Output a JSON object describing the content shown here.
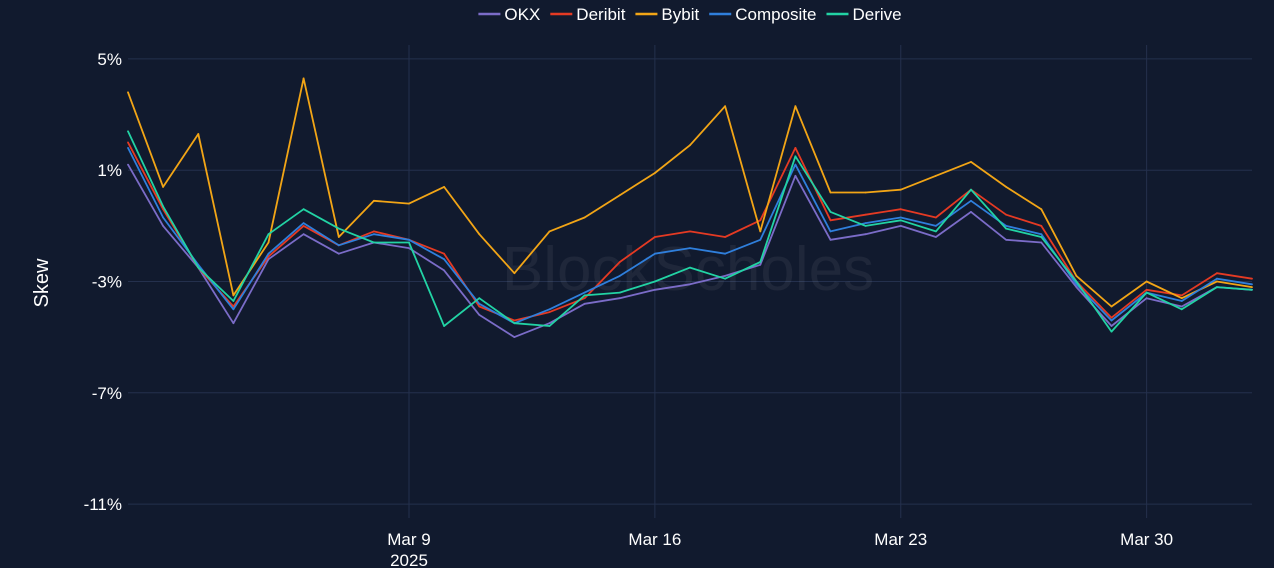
{
  "watermark": "BlockScholes",
  "colors": {
    "background": "#111a2e",
    "grid": "#24304d"
  },
  "chart_data": {
    "type": "line",
    "title": "",
    "xlabel": "",
    "ylabel": "Skew",
    "ylim": [
      -11.5,
      5.5
    ],
    "yticks": [
      5,
      1,
      -3,
      -7,
      -11
    ],
    "ytick_labels": [
      "5%",
      "1%",
      "-3%",
      "-7%",
      "-11%"
    ],
    "xlim": [
      "2025-03-01",
      "2025-04-02"
    ],
    "xticks": [
      "2025-03-09",
      "2025-03-16",
      "2025-03-23",
      "2025-03-30"
    ],
    "xtick_labels": [
      "Mar 9",
      "Mar 16",
      "Mar 23",
      "Mar 30"
    ],
    "xtick_sublabel": "2025",
    "grid": true,
    "legend_position": "top-center",
    "legend_orientation": "horizontal",
    "series": [
      {
        "name": "OKX",
        "color": "#7b6cc8",
        "points": [
          [
            "2025-03-01",
            1.2
          ],
          [
            "2025-03-02",
            -1.0
          ],
          [
            "2025-03-03",
            -2.5
          ],
          [
            "2025-03-04",
            -4.5
          ],
          [
            "2025-03-05",
            -2.2
          ],
          [
            "2025-03-06",
            -1.3
          ],
          [
            "2025-03-07",
            -2.0
          ],
          [
            "2025-03-08",
            -1.6
          ],
          [
            "2025-03-09",
            -1.8
          ],
          [
            "2025-03-10",
            -2.6
          ],
          [
            "2025-03-11",
            -4.2
          ],
          [
            "2025-03-12",
            -5.0
          ],
          [
            "2025-03-13",
            -4.5
          ],
          [
            "2025-03-14",
            -3.8
          ],
          [
            "2025-03-15",
            -3.6
          ],
          [
            "2025-03-16",
            -3.3
          ],
          [
            "2025-03-17",
            -3.1
          ],
          [
            "2025-03-18",
            -2.8
          ],
          [
            "2025-03-19",
            -2.4
          ],
          [
            "2025-03-20",
            0.8
          ],
          [
            "2025-03-21",
            -1.5
          ],
          [
            "2025-03-22",
            -1.3
          ],
          [
            "2025-03-23",
            -1.0
          ],
          [
            "2025-03-24",
            -1.4
          ],
          [
            "2025-03-25",
            -0.5
          ],
          [
            "2025-03-26",
            -1.5
          ],
          [
            "2025-03-27",
            -1.6
          ],
          [
            "2025-03-28",
            -3.2
          ],
          [
            "2025-03-29",
            -4.6
          ],
          [
            "2025-03-30",
            -3.6
          ],
          [
            "2025-03-31",
            -3.9
          ],
          [
            "2025-04-01",
            -3.2
          ],
          [
            "2025-04-02",
            -3.3
          ]
        ]
      },
      {
        "name": "Deribit",
        "color": "#e53a23",
        "points": [
          [
            "2025-03-01",
            2.0
          ],
          [
            "2025-03-02",
            -0.4
          ],
          [
            "2025-03-03",
            -2.5
          ],
          [
            "2025-03-04",
            -3.9
          ],
          [
            "2025-03-05",
            -2.1
          ],
          [
            "2025-03-06",
            -1.0
          ],
          [
            "2025-03-07",
            -1.7
          ],
          [
            "2025-03-08",
            -1.2
          ],
          [
            "2025-03-09",
            -1.5
          ],
          [
            "2025-03-10",
            -2.0
          ],
          [
            "2025-03-11",
            -3.9
          ],
          [
            "2025-03-12",
            -4.4
          ],
          [
            "2025-03-13",
            -4.1
          ],
          [
            "2025-03-14",
            -3.6
          ],
          [
            "2025-03-15",
            -2.3
          ],
          [
            "2025-03-16",
            -1.4
          ],
          [
            "2025-03-17",
            -1.2
          ],
          [
            "2025-03-18",
            -1.4
          ],
          [
            "2025-03-19",
            -0.8
          ],
          [
            "2025-03-20",
            1.8
          ],
          [
            "2025-03-21",
            -0.8
          ],
          [
            "2025-03-22",
            -0.6
          ],
          [
            "2025-03-23",
            -0.4
          ],
          [
            "2025-03-24",
            -0.7
          ],
          [
            "2025-03-25",
            0.3
          ],
          [
            "2025-03-26",
            -0.6
          ],
          [
            "2025-03-27",
            -1.0
          ],
          [
            "2025-03-28",
            -3.0
          ],
          [
            "2025-03-29",
            -4.3
          ],
          [
            "2025-03-30",
            -3.3
          ],
          [
            "2025-03-31",
            -3.5
          ],
          [
            "2025-04-01",
            -2.7
          ],
          [
            "2025-04-02",
            -2.9
          ]
        ]
      },
      {
        "name": "Bybit",
        "color": "#f2a516",
        "points": [
          [
            "2025-03-01",
            3.8
          ],
          [
            "2025-03-02",
            0.4
          ],
          [
            "2025-03-03",
            2.3
          ],
          [
            "2025-03-04",
            -3.5
          ],
          [
            "2025-03-05",
            -1.6
          ],
          [
            "2025-03-06",
            4.3
          ],
          [
            "2025-03-07",
            -1.4
          ],
          [
            "2025-03-08",
            -0.1
          ],
          [
            "2025-03-09",
            -0.2
          ],
          [
            "2025-03-10",
            0.4
          ],
          [
            "2025-03-11",
            -1.3
          ],
          [
            "2025-03-12",
            -2.7
          ],
          [
            "2025-03-13",
            -1.2
          ],
          [
            "2025-03-14",
            -0.7
          ],
          [
            "2025-03-15",
            0.1
          ],
          [
            "2025-03-16",
            0.9
          ],
          [
            "2025-03-17",
            1.9
          ],
          [
            "2025-03-18",
            3.3
          ],
          [
            "2025-03-19",
            -1.2
          ],
          [
            "2025-03-20",
            3.3
          ],
          [
            "2025-03-21",
            0.2
          ],
          [
            "2025-03-22",
            0.2
          ],
          [
            "2025-03-23",
            0.3
          ],
          [
            "2025-03-24",
            0.8
          ],
          [
            "2025-03-25",
            1.3
          ],
          [
            "2025-03-26",
            0.4
          ],
          [
            "2025-03-27",
            -0.4
          ],
          [
            "2025-03-28",
            -2.8
          ],
          [
            "2025-03-29",
            -3.9
          ],
          [
            "2025-03-30",
            -3.0
          ],
          [
            "2025-03-31",
            -3.6
          ],
          [
            "2025-04-01",
            -3.0
          ],
          [
            "2025-04-02",
            -3.2
          ]
        ]
      },
      {
        "name": "Composite",
        "color": "#2f7fdc",
        "points": [
          [
            "2025-03-01",
            1.8
          ],
          [
            "2025-03-02",
            -0.7
          ],
          [
            "2025-03-03",
            -2.4
          ],
          [
            "2025-03-04",
            -4.0
          ],
          [
            "2025-03-05",
            -2.0
          ],
          [
            "2025-03-06",
            -0.9
          ],
          [
            "2025-03-07",
            -1.7
          ],
          [
            "2025-03-08",
            -1.3
          ],
          [
            "2025-03-09",
            -1.5
          ],
          [
            "2025-03-10",
            -2.2
          ],
          [
            "2025-03-11",
            -3.8
          ],
          [
            "2025-03-12",
            -4.5
          ],
          [
            "2025-03-13",
            -4.0
          ],
          [
            "2025-03-14",
            -3.4
          ],
          [
            "2025-03-15",
            -2.8
          ],
          [
            "2025-03-16",
            -2.0
          ],
          [
            "2025-03-17",
            -1.8
          ],
          [
            "2025-03-18",
            -2.0
          ],
          [
            "2025-03-19",
            -1.5
          ],
          [
            "2025-03-20",
            1.2
          ],
          [
            "2025-03-21",
            -1.2
          ],
          [
            "2025-03-22",
            -0.9
          ],
          [
            "2025-03-23",
            -0.7
          ],
          [
            "2025-03-24",
            -1.0
          ],
          [
            "2025-03-25",
            -0.1
          ],
          [
            "2025-03-26",
            -1.0
          ],
          [
            "2025-03-27",
            -1.3
          ],
          [
            "2025-03-28",
            -3.1
          ],
          [
            "2025-03-29",
            -4.4
          ],
          [
            "2025-03-30",
            -3.4
          ],
          [
            "2025-03-31",
            -3.7
          ],
          [
            "2025-04-01",
            -2.9
          ],
          [
            "2025-04-02",
            -3.1
          ]
        ]
      },
      {
        "name": "Derive",
        "color": "#22d3a4",
        "points": [
          [
            "2025-03-01",
            2.4
          ],
          [
            "2025-03-02",
            -0.3
          ],
          [
            "2025-03-03",
            -2.5
          ],
          [
            "2025-03-04",
            -3.7
          ],
          [
            "2025-03-05",
            -1.3
          ],
          [
            "2025-03-06",
            -0.4
          ],
          [
            "2025-03-07",
            -1.1
          ],
          [
            "2025-03-08",
            -1.6
          ],
          [
            "2025-03-09",
            -1.6
          ],
          [
            "2025-03-10",
            -4.6
          ],
          [
            "2025-03-11",
            -3.6
          ],
          [
            "2025-03-12",
            -4.5
          ],
          [
            "2025-03-13",
            -4.6
          ],
          [
            "2025-03-14",
            -3.5
          ],
          [
            "2025-03-15",
            -3.4
          ],
          [
            "2025-03-16",
            -3.0
          ],
          [
            "2025-03-17",
            -2.5
          ],
          [
            "2025-03-18",
            -2.9
          ],
          [
            "2025-03-19",
            -2.3
          ],
          [
            "2025-03-20",
            1.5
          ],
          [
            "2025-03-21",
            -0.5
          ],
          [
            "2025-03-22",
            -1.0
          ],
          [
            "2025-03-23",
            -0.8
          ],
          [
            "2025-03-24",
            -1.2
          ],
          [
            "2025-03-25",
            0.3
          ],
          [
            "2025-03-26",
            -1.1
          ],
          [
            "2025-03-27",
            -1.4
          ],
          [
            "2025-03-28",
            -3.0
          ],
          [
            "2025-03-29",
            -4.8
          ],
          [
            "2025-03-30",
            -3.4
          ],
          [
            "2025-03-31",
            -4.0
          ],
          [
            "2025-04-01",
            -3.2
          ],
          [
            "2025-04-02",
            -3.3
          ]
        ]
      }
    ]
  }
}
